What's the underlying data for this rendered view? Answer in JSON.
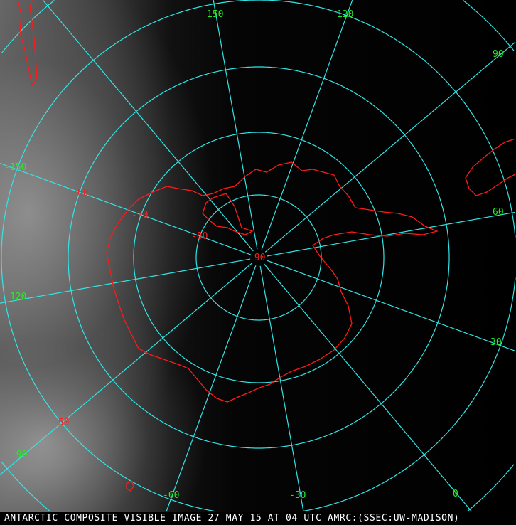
{
  "caption": "ANTARCTIC COMPOSITE VISIBLE IMAGE 27 MAY 15 AT 04 UTC AMRC:(SSEC:UW-MADISON)",
  "graticule_color": "#33e5e5",
  "coastline_color": "#ff1a1a",
  "longitude_labels": {
    "l150": "150",
    "l120": "120",
    "l90": "90",
    "l60": "60",
    "l30": "30",
    "l0": "0",
    "lm30": "-30",
    "lm60": "-60",
    "lm90": "-90",
    "lm120": "-120",
    "lm150": "-150"
  },
  "latitude_labels": {
    "l90": "-90",
    "l80": "-80",
    "l70": "-70",
    "l60": "-60",
    "l50": "-50"
  }
}
